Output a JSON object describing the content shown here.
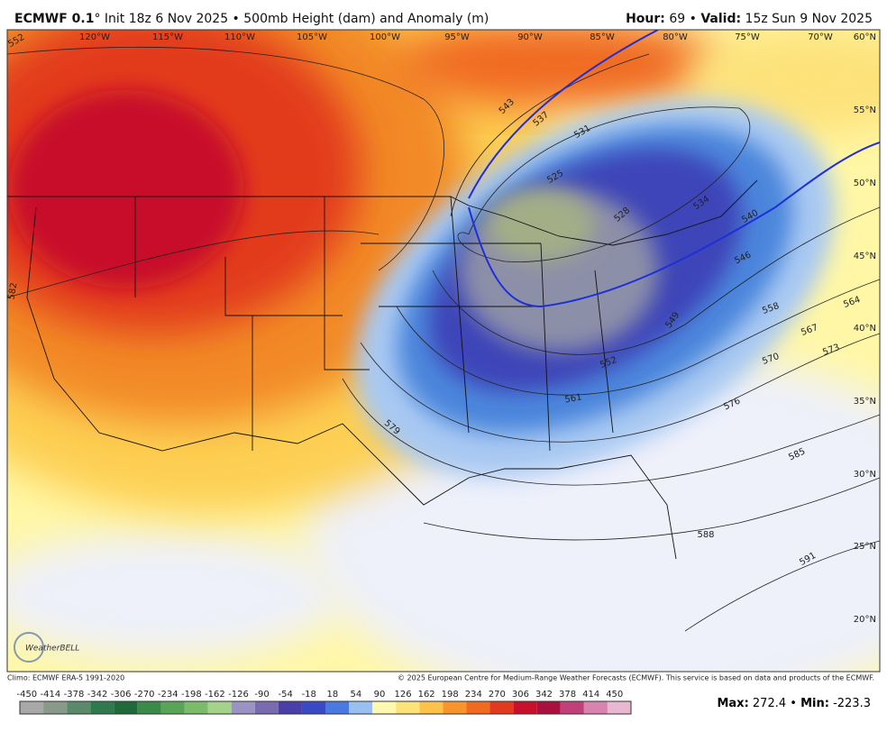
{
  "header": {
    "model": "ECMWF 0.1",
    "description": "° Init 18z 6 Nov 2025 • 500mb Height (dam) and Anomaly (m)",
    "hour_label": "Hour:",
    "hour": "69 •",
    "valid_label": "Valid:",
    "valid": "15z Sun 9 Nov 2025"
  },
  "longitude_labels": [
    "120°W",
    "115°W",
    "110°W",
    "105°W",
    "100°W",
    "95°W",
    "90°W",
    "85°W",
    "80°W",
    "75°W",
    "70°W"
  ],
  "latitude_labels": [
    "60°N",
    "55°N",
    "50°N",
    "45°N",
    "40°N",
    "35°N",
    "30°N",
    "25°N",
    "20°N"
  ],
  "contour_labels": [
    "552",
    "582",
    "543",
    "537",
    "531",
    "525",
    "528",
    "534",
    "540",
    "546",
    "549",
    "552",
    "558",
    "561",
    "564",
    "567",
    "570",
    "573",
    "576",
    "579",
    "585",
    "588",
    "591"
  ],
  "logo": "WeatherBELL",
  "footer": {
    "climo": "Climo: ECMWF ERA-5 1991-2020",
    "copyright": "© 2025 European Centre for Medium-Range Weather Forecasts (ECMWF). This service is based on data and products of the ECMWF.",
    "max_label": "Max:",
    "max": "272.4 •",
    "min_label": "Min:",
    "min": "-223.3"
  },
  "colorbar": {
    "ticks": [
      -450,
      -414,
      -378,
      -342,
      -306,
      -270,
      -234,
      -198,
      -162,
      -126,
      -90,
      -54,
      -18,
      18,
      54,
      90,
      126,
      162,
      198,
      234,
      270,
      306,
      342,
      378,
      414,
      450
    ]
  }
}
